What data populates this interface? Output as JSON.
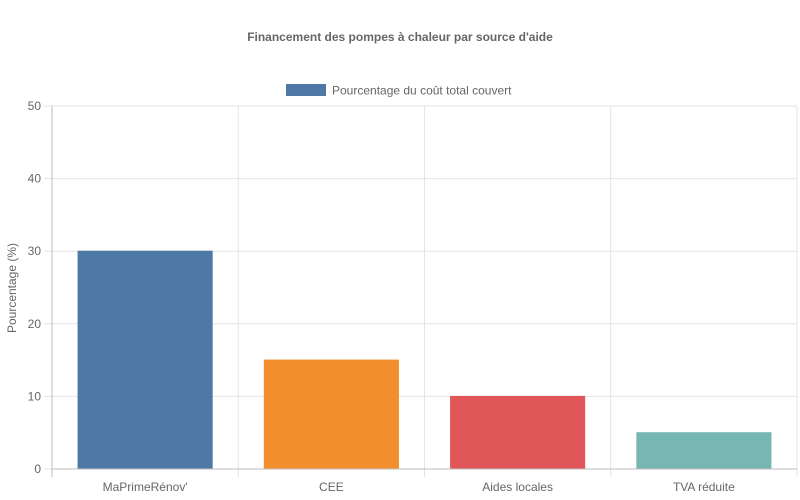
{
  "chart_data": {
    "type": "bar",
    "title": "Financement des pompes à chaleur par source d'aide",
    "legend": {
      "position": "top",
      "label": "Pourcentage du coût total couvert"
    },
    "ylabel": "Pourcentage (%)",
    "xlabel": "",
    "ylim": [
      0,
      50
    ],
    "yticks": [
      0,
      10,
      20,
      30,
      40,
      50
    ],
    "grid": true,
    "categories": [
      "MaPrimeRénov'",
      "CEE",
      "Aides locales",
      "TVA réduite"
    ],
    "series": [
      {
        "name": "Pourcentage du coût total couvert",
        "values": [
          30,
          15,
          10,
          5
        ],
        "colors": [
          "#4e79a7",
          "#f28e2b",
          "#e15759",
          "#76b7b2"
        ]
      }
    ]
  }
}
